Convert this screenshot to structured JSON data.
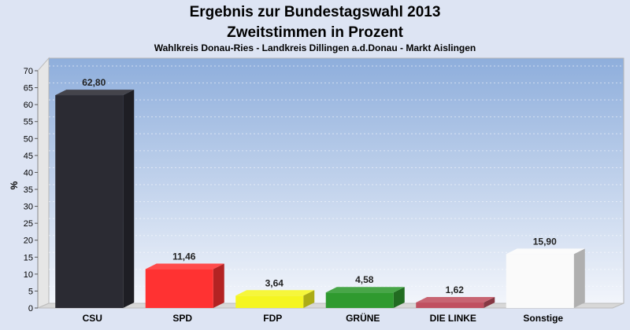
{
  "chart_data": {
    "type": "bar",
    "title": "Ergebnis zur Bundestagswahl 2013",
    "title2": "Zweitstimmen in Prozent",
    "subtitle": "Wahlkreis Donau-Ries - Landkreis Dillingen a.d.Donau - Markt Aislingen",
    "ylabel": "%",
    "ylim": [
      0,
      70
    ],
    "yticks": [
      "0",
      "5",
      "10",
      "15",
      "20",
      "25",
      "30",
      "35",
      "40",
      "45",
      "50",
      "55",
      "60",
      "65",
      "70"
    ],
    "categories": [
      "CSU",
      "SPD",
      "FDP",
      "GRÜNE",
      "DIE LINKE",
      "Sonstige"
    ],
    "values": [
      62.8,
      11.46,
      3.64,
      4.58,
      1.62,
      15.9
    ],
    "value_labels": [
      "62,80",
      "11,46",
      "3,64",
      "4,58",
      "1,62",
      "15,90"
    ],
    "colors": [
      "#2b2b33",
      "#ff3232",
      "#f5f520",
      "#2f9a2f",
      "#c05060",
      "#fafafa"
    ],
    "grid": true,
    "legend": "none"
  }
}
